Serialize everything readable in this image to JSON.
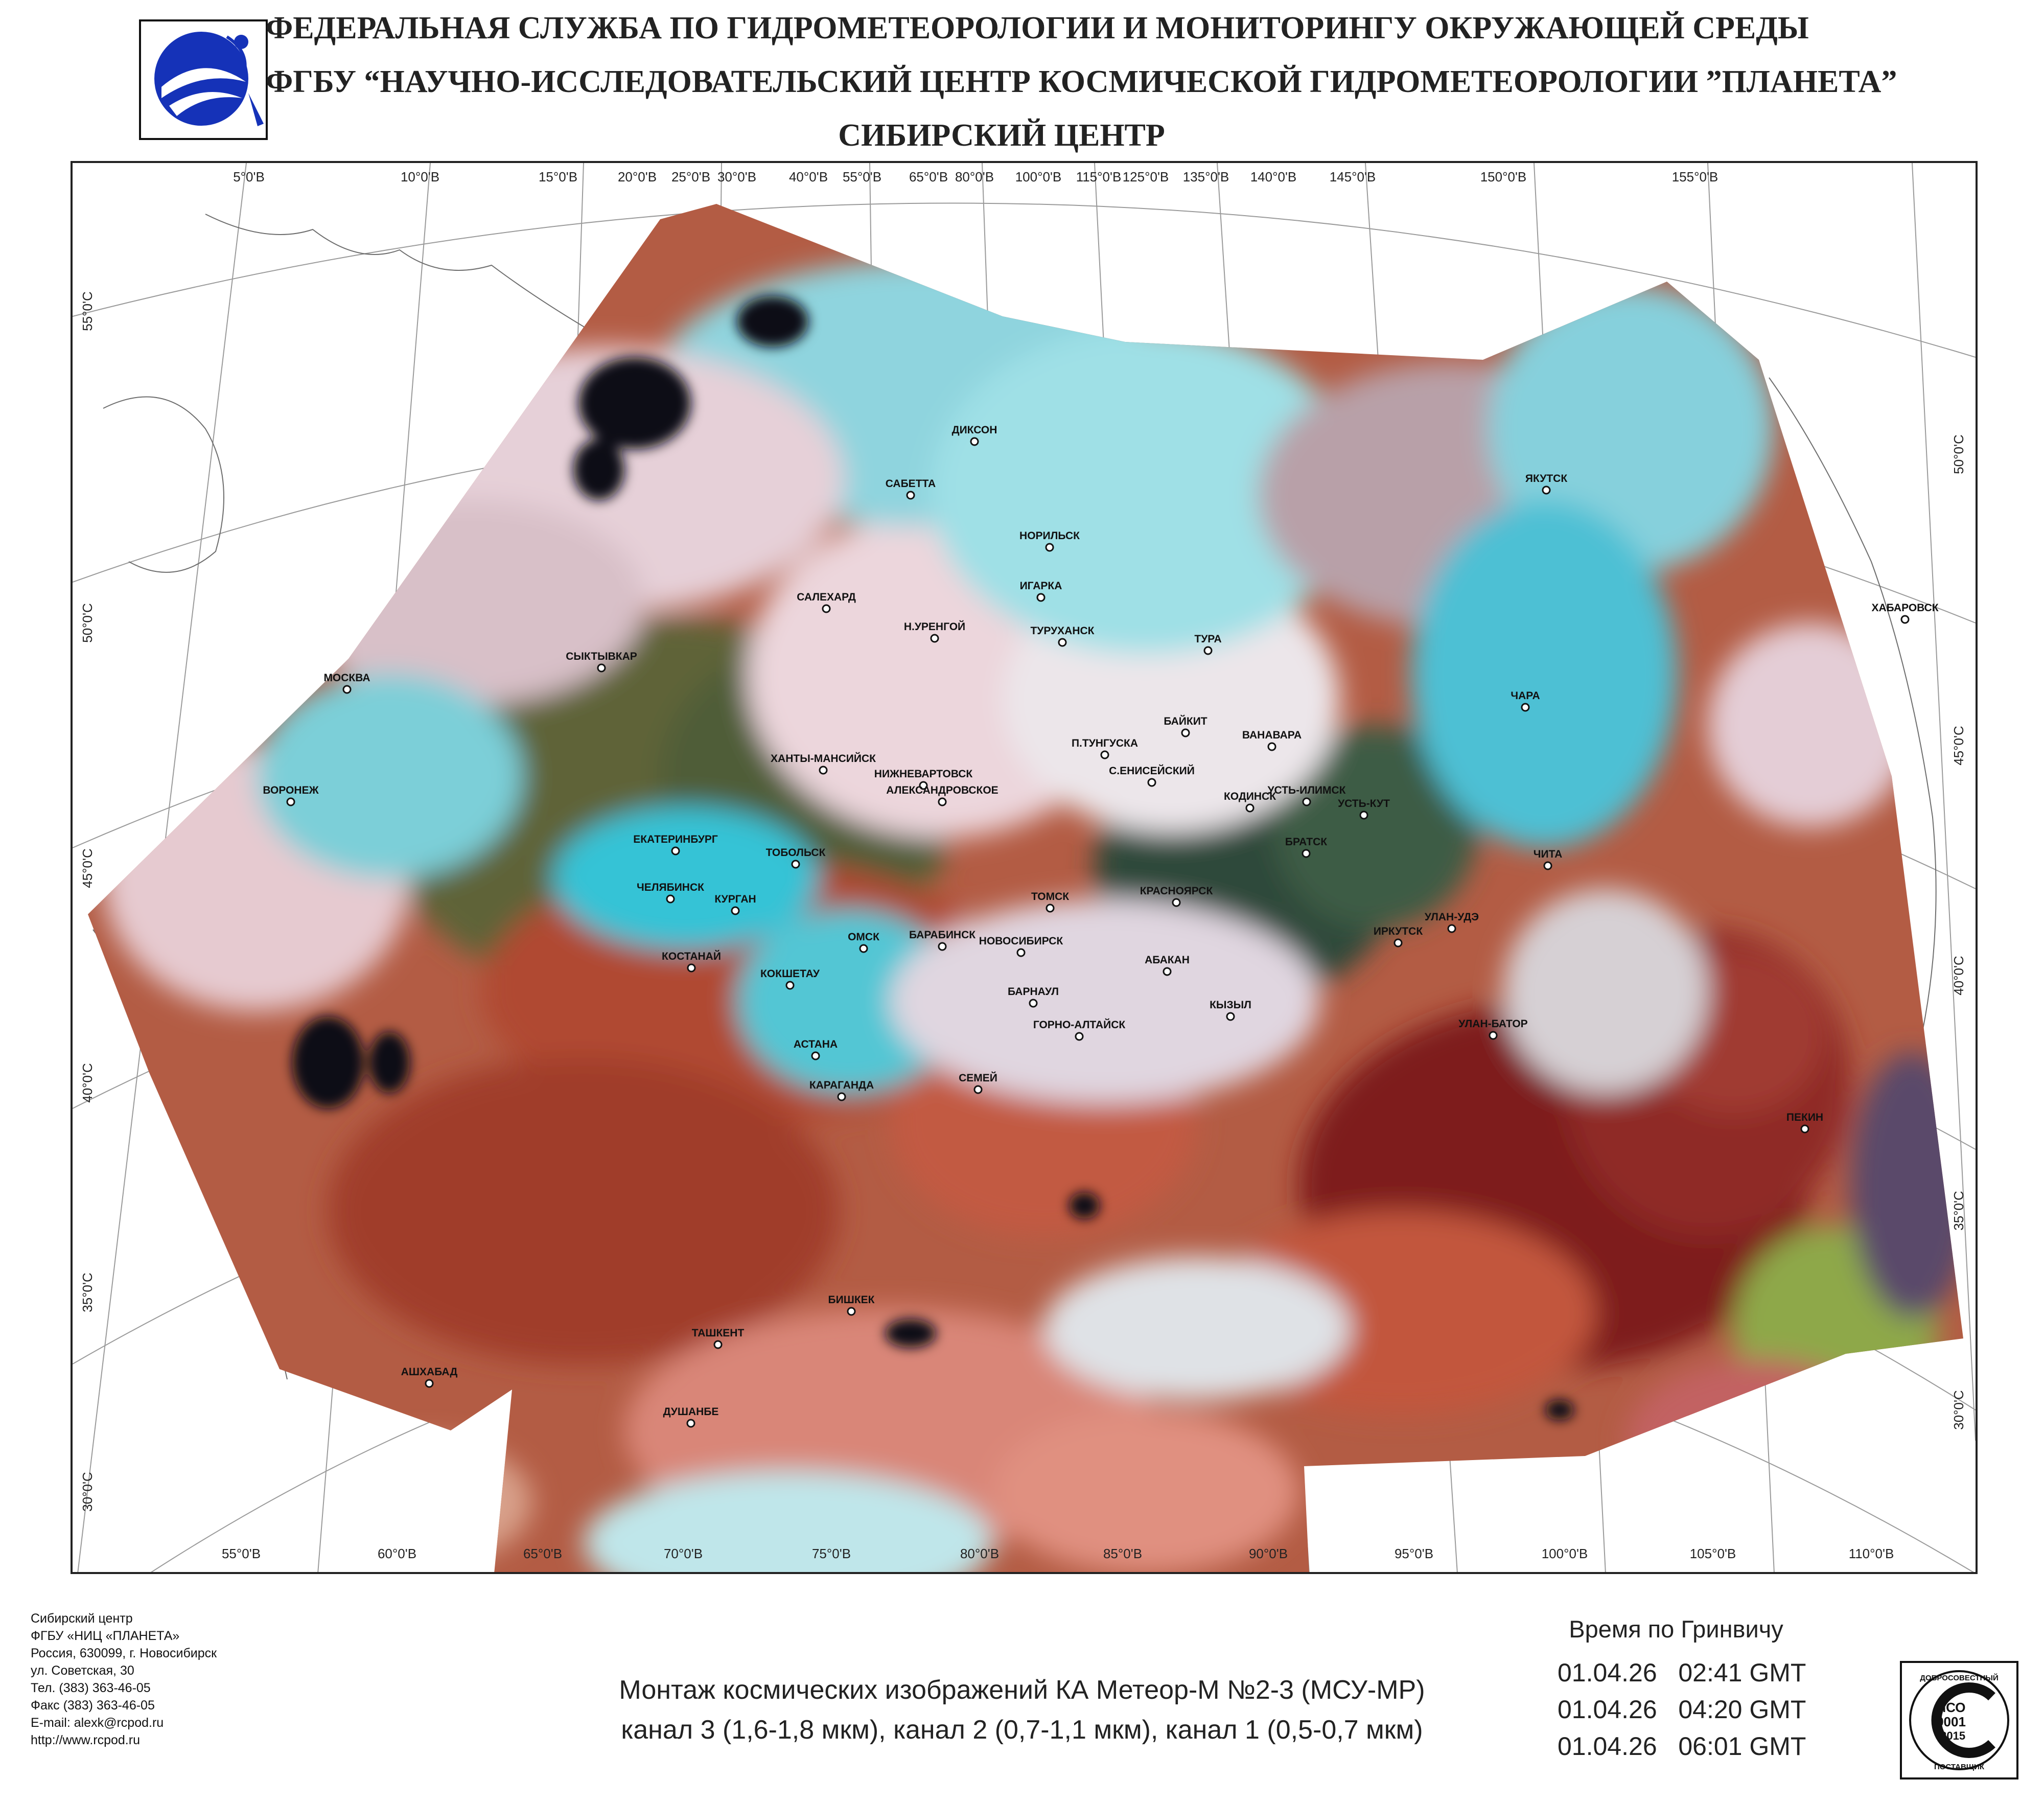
{
  "header": {
    "line1": "ФЕДЕРАЛЬНАЯ СЛУЖБА ПО ГИДРОМЕТЕОРОЛОГИИ И МОНИТОРИНГУ ОКРУЖАЮЩЕЙ СРЕДЫ",
    "line2": "ФГБУ “НАУЧНО-ИССЛЕДОВАТЕЛЬСКИЙ ЦЕНТР КОСМИЧЕСКОЙ ГИДРОМЕТЕОРОЛОГИИ ”ПЛАНЕТА”",
    "line3": "СИБИРСКИЙ  ЦЕНТР",
    "logo_icon": "planeta-logo-icon"
  },
  "map": {
    "top_ticks": [
      "5°0'В",
      "10°0'В",
      "15°0'В",
      "20°0'В",
      "25°0'В",
      "30°0'В",
      "40°0'В",
      "55°0'В",
      "65°0'В",
      "80°0'В",
      "100°0'В",
      "115°0'В",
      "125°0'В",
      "135°0'В",
      "140°0'В",
      "145°0'В",
      "150°0'В",
      "155°0'В"
    ],
    "bottom_ticks": [
      "55°0'В",
      "60°0'В",
      "65°0'В",
      "70°0'В",
      "75°0'В",
      "80°0'В",
      "85°0'В",
      "90°0'В",
      "95°0'В",
      "100°0'В",
      "105°0'В",
      "110°0'В"
    ],
    "left_ticks": [
      "55°0'С",
      "50°0'С",
      "45°0'С",
      "40°0'С",
      "35°0'С",
      "30°0'С"
    ],
    "right_ticks": [
      "50°0'С",
      "45°0'С",
      "40°0'С",
      "35°0'С",
      "30°0'С"
    ],
    "colors": {
      "cloud": "#ecd6dc",
      "ice_cyan": "#8fd4de",
      "bright_cyan": "#35c3d6",
      "forest": "#56603a",
      "dark_forest": "#2f4a3a",
      "steppe_red": "#b04a32",
      "deep_red": "#7e1e1e",
      "desert": "#d98678",
      "water": "#0a0a1e",
      "green_plain": "#8ea84a"
    },
    "cities": [
      "ДИКСОН",
      "САБЕТТА",
      "НОРИЛЬСК",
      "ИГАРКА",
      "САЛЕХАРД",
      "Н.УРЕНГОЙ",
      "ТУРУХАНСК",
      "ТУРА",
      "СЫКТЫВКАР",
      "МОСКВА",
      "ВОРОНЕЖ",
      "ХАНТЫ-МАНСИЙСК",
      "НИЖНЕВАРТОВСК",
      "АЛЕКСАНДРОВСКОЕ",
      "П.ТУНГУСКА",
      "БАЙКИТ",
      "ВАНАВАРА",
      "С.ЕНИСЕЙСКИЙ",
      "УСТЬ-ИЛИМСК",
      "КОДИНСК",
      "УСТЬ-КУТ",
      "БРАТСК",
      "ЕКАТЕРИНБУРГ",
      "ТОБОЛЬСК",
      "ЧЕЛЯБИНСК",
      "КУРГАН",
      "КОСТАНАЙ",
      "ОМСК",
      "НОВОСИБИРСК",
      "БАРАБИНСК",
      "ТОМСК",
      "КРАСНОЯРСК",
      "ИРКУТСК",
      "УЛАН-УДЭ",
      "КОКШЕТАУ",
      "АБАКАН",
      "БАРНАУЛ",
      "КЫЗЫЛ",
      "ГОРНО-АЛТАЙСК",
      "АСТАНА",
      "КАРАГАНДА",
      "СЕМЕЙ",
      "УЛАН-БАТОР",
      "ЯКУТСК",
      "ХАБАРОВСК",
      "ЧАРА",
      "ЧИТА",
      "ПЕКИН",
      "БИШКЕК",
      "ТАШКЕНТ",
      "АШХАБАД",
      "ДУШАНБЕ"
    ]
  },
  "footer": {
    "address_lines": [
      "Сибирский центр",
      "ФГБУ «НИЦ «ПЛАНЕТА»",
      "Россия, 630099, г. Новосибирск",
      "ул. Советская, 30",
      "Тел. (383) 363-46-05",
      "Факс (383) 363-46-05",
      "E-mail: alexk@rcpod.ru",
      "http://www.rcpod.ru"
    ],
    "caption_line1": "Монтаж космических изображений КА Метеор-М №2-3 (МСУ-МР)",
    "caption_line2": "канал 3 (1,6-1,8 мкм), канал 2 (0,7-1,1 мкм), канал 1 (0,5-0,7 мкм)",
    "time_title": "Время по Гринвичу",
    "times": [
      {
        "date": "01.04.26",
        "time": "02:41 GMT"
      },
      {
        "date": "01.04.26",
        "time": "04:20 GMT"
      },
      {
        "date": "01.04.26",
        "time": "06:01 GMT"
      }
    ],
    "iso": {
      "top": "ДОБРОСОВЕСТНЫЙ",
      "l1": "ИСО",
      "l2": "9001",
      "l3": "-2015",
      "bottom": "ПОСТАВЩИК"
    }
  }
}
